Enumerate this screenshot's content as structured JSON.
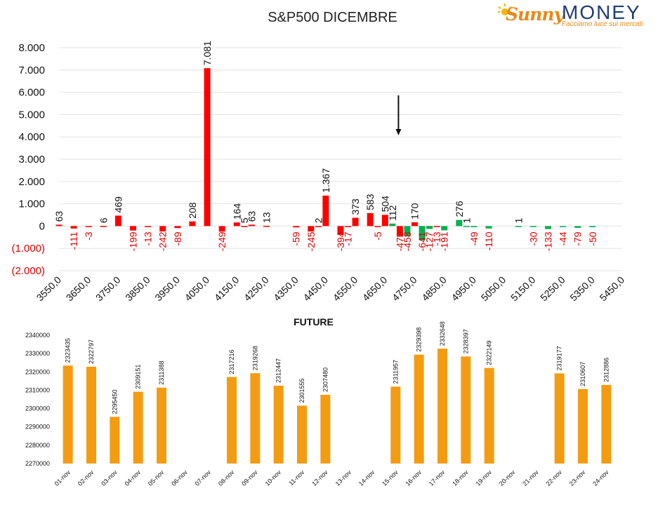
{
  "logo": {
    "name_part1": "Sunny",
    "name_part2": "MONEY",
    "tagline": "Facciamo luce sui mercati"
  },
  "chart_data": [
    {
      "type": "bar",
      "title": "S&P500 DICEMBRE",
      "x": [
        3550,
        3600,
        3650,
        3700,
        3750,
        3800,
        3850,
        3900,
        3950,
        4000,
        4050,
        4100,
        4150,
        4200,
        4250,
        4300,
        4350,
        4400,
        4450,
        4500,
        4550,
        4600,
        4650,
        4700,
        4750,
        4800,
        4850,
        4900,
        4950,
        5000,
        5050,
        5100,
        5150,
        5200,
        5250,
        5300,
        5350,
        5400,
        5450
      ],
      "x_tick_labels": [
        "3550,0",
        "3650,0",
        "3750,0",
        "3850,0",
        "3950,0",
        "4050,0",
        "4150,0",
        "4250,0",
        "4350,0",
        "4450,0",
        "4550,0",
        "4650,0",
        "4750,0",
        "4850,0",
        "4950,0",
        "5050,0",
        "5150,0",
        "5250,0",
        "5350,0",
        "5450,0"
      ],
      "y_tick_labels": [
        "8.000",
        "7.000",
        "6.000",
        "5.000",
        "4.000",
        "3.000",
        "2.000",
        "1.000",
        "0",
        "(1.000)",
        "(2.000)"
      ],
      "ylim": [
        -2000,
        8000
      ],
      "grid": true,
      "series": [
        {
          "color": "#ff0000",
          "points": [
            {
              "x": 3550,
              "y": 63,
              "label": "63"
            },
            {
              "x": 3600,
              "y": -111,
              "label": "-111"
            },
            {
              "x": 3650,
              "y": -3,
              "label": "-3"
            },
            {
              "x": 3700,
              "y": 6,
              "label": "6"
            },
            {
              "x": 3750,
              "y": 469,
              "label": "469"
            },
            {
              "x": 3800,
              "y": -199,
              "label": "-199"
            },
            {
              "x": 3850,
              "y": -13,
              "label": "-13"
            },
            {
              "x": 3900,
              "y": -242,
              "label": "-242"
            },
            {
              "x": 3950,
              "y": -89,
              "label": "-89"
            },
            {
              "x": 4000,
              "y": 208,
              "label": "208"
            },
            {
              "x": 4050,
              "y": 7081,
              "label": "7.081"
            },
            {
              "x": 4100,
              "y": -249,
              "label": "-249"
            },
            {
              "x": 4150,
              "y": 164,
              "label": "164"
            },
            {
              "x": 4175,
              "y": 5,
              "label": "5"
            },
            {
              "x": 4200,
              "y": 63,
              "label": "63"
            },
            {
              "x": 4250,
              "y": 13,
              "label": "13"
            },
            {
              "x": 4350,
              "y": -59,
              "label": "-59"
            },
            {
              "x": 4400,
              "y": -245,
              "label": "-245"
            },
            {
              "x": 4425,
              "y": 2,
              "label": "2"
            },
            {
              "x": 4450,
              "y": 1367,
              "label": "1.367"
            },
            {
              "x": 4500,
              "y": -394,
              "label": "-394"
            },
            {
              "x": 4525,
              "y": -17,
              "label": "-17"
            },
            {
              "x": 4550,
              "y": 373,
              "label": "373"
            },
            {
              "x": 4600,
              "y": 583,
              "label": "583"
            },
            {
              "x": 4625,
              "y": -5,
              "label": "-5"
            },
            {
              "x": 4650,
              "y": 504,
              "label": "504"
            },
            {
              "x": 4700,
              "y": -473,
              "label": "-473"
            },
            {
              "x": 4750,
              "y": 170,
              "label": "170"
            },
            {
              "x": 4775,
              "y": -3,
              "label": "-3"
            },
            {
              "x": 4800,
              "y": -127,
              "label": "-127"
            },
            {
              "x": 4825,
              "y": -13,
              "label": "-13"
            }
          ]
        },
        {
          "color": "#00b050",
          "points": [
            {
              "x": 4675,
              "y": 112,
              "label": "112"
            },
            {
              "x": 4725,
              "y": -458,
              "label": "-458"
            },
            {
              "x": 4775,
              "y": -641,
              "label": "-641"
            },
            {
              "x": 4800,
              "y": -127,
              "label": ""
            },
            {
              "x": 4850,
              "y": -191,
              "label": "-191"
            },
            {
              "x": 4900,
              "y": 276,
              "label": "276"
            },
            {
              "x": 4925,
              "y": 1,
              "label": "1"
            },
            {
              "x": 4950,
              "y": -49,
              "label": "-49"
            },
            {
              "x": 5000,
              "y": -110,
              "label": "-110"
            },
            {
              "x": 5100,
              "y": 1,
              "label": "1"
            },
            {
              "x": 5150,
              "y": -30,
              "label": "-30"
            },
            {
              "x": 5200,
              "y": -133,
              "label": "-133"
            },
            {
              "x": 5250,
              "y": -44,
              "label": "-44"
            },
            {
              "x": 5300,
              "y": -79,
              "label": "-79"
            },
            {
              "x": 5350,
              "y": -50,
              "label": "-50"
            }
          ]
        }
      ],
      "annotations": [
        {
          "type": "arrow",
          "direction": "down",
          "x": 4700
        }
      ]
    },
    {
      "type": "bar",
      "title": "FUTURE",
      "color": "#f39c12",
      "categories": [
        "01-nov",
        "02-nov",
        "03-nov",
        "04-nov",
        "05-nov",
        "06-nov",
        "07-nov",
        "08-nov",
        "09-nov",
        "10-nov",
        "11-nov",
        "12-nov",
        "13-nov",
        "14-nov",
        "15-nov",
        "16-nov",
        "17-nov",
        "18-nov",
        "19-nov",
        "20-nov",
        "21-nov",
        "22-nov",
        "23-nov",
        "24-nov"
      ],
      "values": [
        2323435,
        2322797,
        2295450,
        2309151,
        2311388,
        null,
        null,
        2317216,
        2319268,
        2312447,
        2301555,
        2307480,
        null,
        null,
        2311957,
        2329398,
        2332648,
        2328397,
        2322149,
        null,
        null,
        2319177,
        2310607,
        2312886
      ],
      "y_tick_labels": [
        "2340000",
        "2330000",
        "2320000",
        "2310000",
        "2300000",
        "2290000",
        "2280000",
        "2270000"
      ],
      "ylim": [
        2270000,
        2340000
      ],
      "grid": false
    }
  ]
}
